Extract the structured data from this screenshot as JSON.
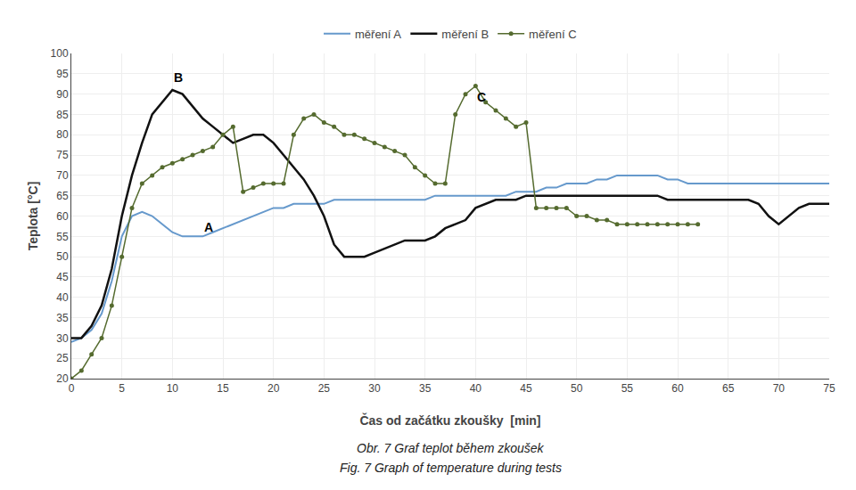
{
  "chart_data": {
    "type": "line",
    "xlabel": "Čas od začátku zkoušky  [min]",
    "ylabel": "Teplota [°C]",
    "xlim": [
      0,
      75
    ],
    "ylim": [
      20,
      100
    ],
    "xticks": [
      0,
      5,
      10,
      15,
      20,
      25,
      30,
      35,
      40,
      45,
      50,
      55,
      60,
      65,
      70,
      75
    ],
    "yticks": [
      20,
      25,
      30,
      35,
      40,
      45,
      50,
      55,
      60,
      65,
      70,
      75,
      80,
      85,
      90,
      95,
      100
    ],
    "grid": true,
    "legend": "top",
    "caption": [
      "Obr. 7 Graf teplot během zkoušek",
      "Fig. 7 Graph of temperature during tests"
    ],
    "annotations": [
      {
        "text": "A",
        "x": 13,
        "y": 55
      },
      {
        "text": "B",
        "x": 10,
        "y": 92
      },
      {
        "text": "C",
        "x": 40,
        "y": 87
      }
    ],
    "series": [
      {
        "name": "měření A",
        "color": "#6699cc",
        "line_style": "solid",
        "x": [
          0,
          1,
          2,
          3,
          4,
          5,
          6,
          7,
          8,
          9,
          10,
          11,
          12,
          13,
          14,
          15,
          16,
          17,
          18,
          19,
          20,
          21,
          22,
          23,
          24,
          25,
          26,
          27,
          28,
          29,
          30,
          31,
          32,
          33,
          34,
          35,
          36,
          37,
          38,
          39,
          40,
          41,
          42,
          43,
          44,
          45,
          46,
          47,
          48,
          49,
          50,
          51,
          52,
          53,
          54,
          55,
          56,
          57,
          58,
          59,
          60,
          61,
          62,
          63,
          64,
          65,
          66,
          67,
          68,
          69,
          70,
          71,
          72,
          73,
          74,
          75
        ],
        "values": [
          29,
          30,
          32,
          36,
          44,
          55,
          60,
          61,
          60,
          58,
          56,
          55,
          55,
          55,
          56,
          57,
          58,
          59,
          60,
          61,
          62,
          62,
          63,
          63,
          63,
          63,
          64,
          64,
          64,
          64,
          64,
          64,
          64,
          64,
          64,
          64,
          65,
          65,
          65,
          65,
          65,
          65,
          65,
          65,
          66,
          66,
          66,
          67,
          67,
          68,
          68,
          68,
          69,
          69,
          70,
          70,
          70,
          70,
          70,
          69,
          69,
          68,
          68,
          68,
          68,
          68,
          68,
          68,
          68,
          68,
          68,
          68,
          68,
          68,
          68,
          68
        ]
      },
      {
        "name": "měření B",
        "color": "#111111",
        "line_style": "solid",
        "x": [
          0,
          1,
          2,
          3,
          4,
          5,
          6,
          7,
          8,
          9,
          10,
          11,
          12,
          13,
          14,
          15,
          16,
          17,
          18,
          19,
          20,
          21,
          22,
          23,
          24,
          25,
          26,
          27,
          28,
          29,
          30,
          31,
          32,
          33,
          34,
          35,
          36,
          37,
          38,
          39,
          40,
          41,
          42,
          43,
          44,
          45,
          46,
          47,
          48,
          49,
          50,
          51,
          52,
          53,
          54,
          55,
          56,
          57,
          58,
          59,
          60,
          61,
          62,
          63,
          64,
          65,
          66,
          67,
          68,
          69,
          70,
          71,
          72,
          73,
          74,
          75
        ],
        "values": [
          30,
          30,
          33,
          38,
          47,
          60,
          70,
          78,
          85,
          88,
          91,
          90,
          87,
          84,
          82,
          80,
          78,
          79,
          80,
          80,
          78,
          75,
          72,
          69,
          65,
          60,
          53,
          50,
          50,
          50,
          51,
          52,
          53,
          54,
          54,
          54,
          55,
          57,
          58,
          59,
          62,
          63,
          64,
          64,
          64,
          65,
          65,
          65,
          65,
          65,
          65,
          65,
          65,
          65,
          65,
          65,
          65,
          65,
          65,
          64,
          64,
          64,
          64,
          64,
          64,
          64,
          64,
          64,
          63,
          60,
          58,
          60,
          62,
          63,
          63,
          63
        ]
      },
      {
        "name": "měření C",
        "color": "#556b2f",
        "line_style": "solid",
        "marker": "dot",
        "x": [
          0,
          1,
          2,
          3,
          4,
          5,
          6,
          7,
          8,
          9,
          10,
          11,
          12,
          13,
          14,
          15,
          16,
          17,
          18,
          19,
          20,
          21,
          22,
          23,
          24,
          25,
          26,
          27,
          28,
          29,
          30,
          31,
          32,
          33,
          34,
          35,
          36,
          37,
          38,
          39,
          40,
          41,
          42,
          43,
          44,
          45,
          46,
          47,
          48,
          49,
          50,
          51,
          52,
          53,
          54,
          55,
          56,
          57,
          58,
          59,
          60,
          61,
          62
        ],
        "values": [
          20,
          22,
          26,
          30,
          38,
          50,
          62,
          68,
          70,
          72,
          73,
          74,
          75,
          76,
          77,
          80,
          82,
          66,
          67,
          68,
          68,
          68,
          80,
          84,
          85,
          83,
          82,
          80,
          80,
          79,
          78,
          77,
          76,
          75,
          72,
          70,
          68,
          68,
          85,
          90,
          92,
          88,
          86,
          84,
          82,
          83,
          62,
          62,
          62,
          62,
          60,
          60,
          59,
          59,
          58,
          58,
          58,
          58,
          58,
          58,
          58,
          58,
          58
        ]
      }
    ]
  }
}
